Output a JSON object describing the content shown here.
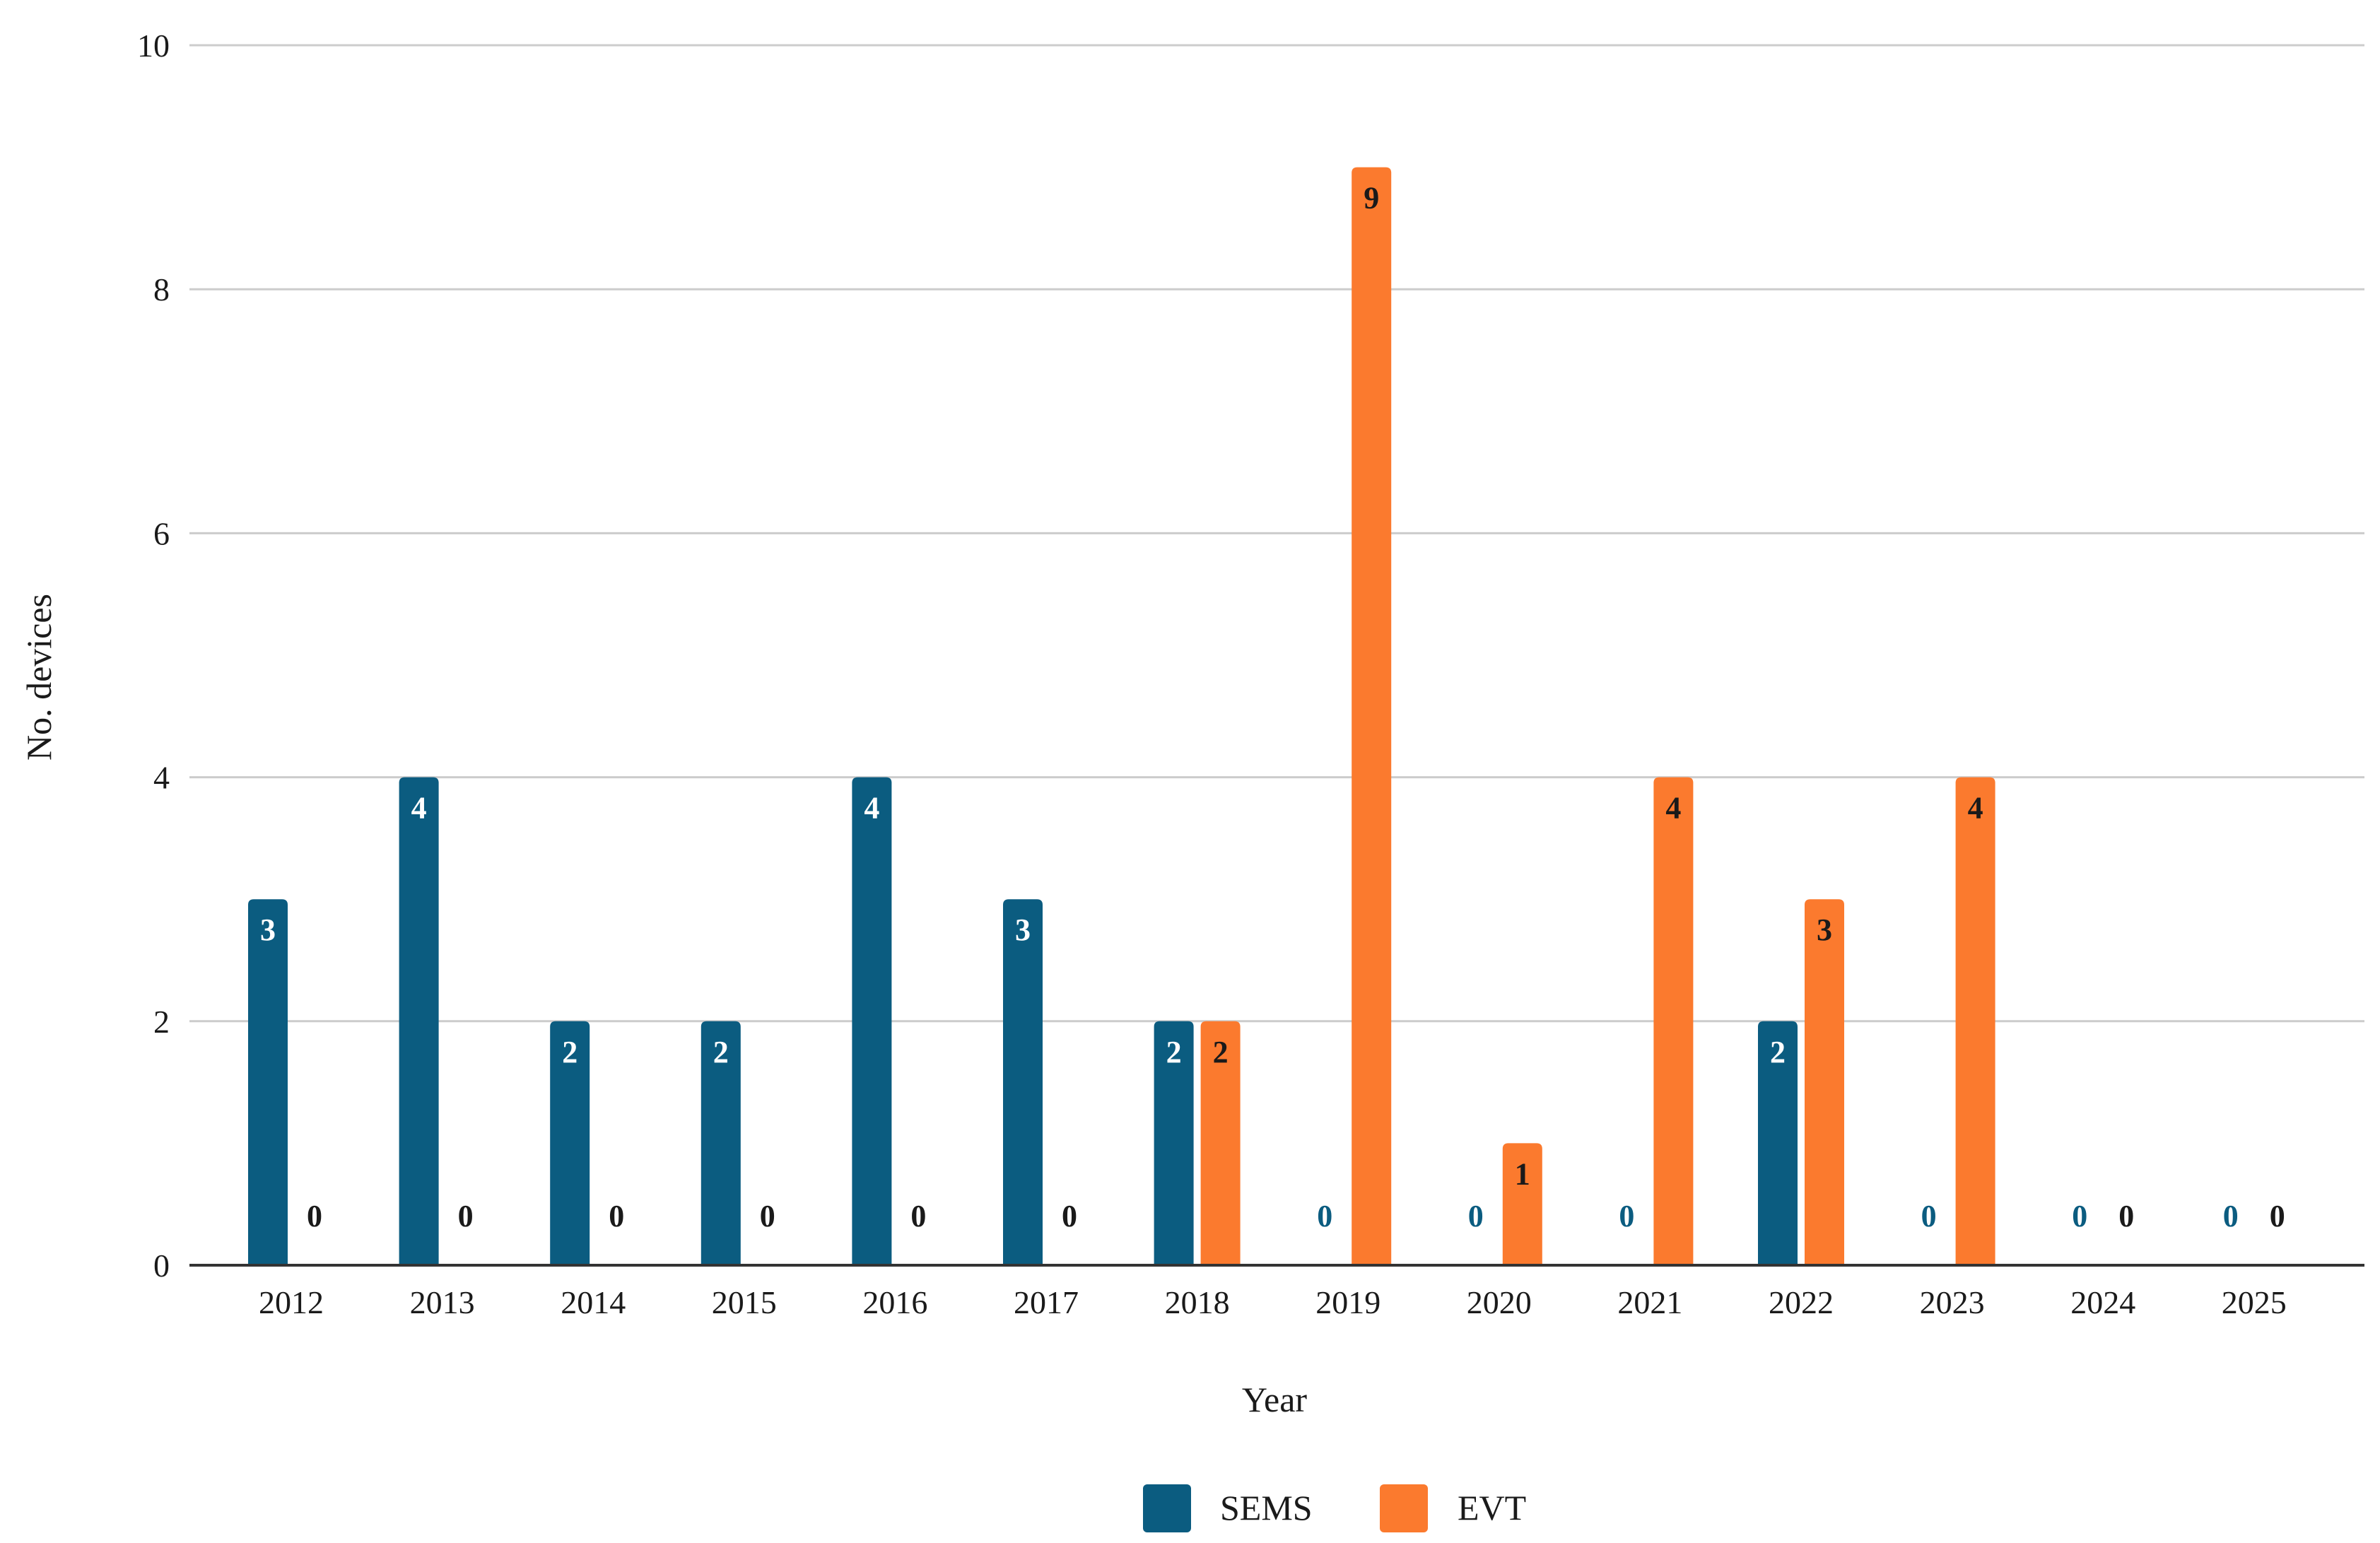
{
  "chart_data": {
    "type": "bar",
    "title": "",
    "xlabel": "Year",
    "ylabel": "No. devices",
    "ylim": [
      0,
      10
    ],
    "yticks": [
      0,
      2,
      4,
      6,
      8,
      10
    ],
    "grid": true,
    "legend_position": "bottom",
    "categories": [
      "2012",
      "2013",
      "2014",
      "2015",
      "2016",
      "2017",
      "2018",
      "2019",
      "2020",
      "2021",
      "2022",
      "2023",
      "2024",
      "2025"
    ],
    "series": [
      {
        "name": "SEMS",
        "color": "#0b5c80",
        "values": [
          3,
          4,
          2,
          2,
          4,
          3,
          2,
          0,
          0,
          0,
          2,
          0,
          0,
          0
        ]
      },
      {
        "name": "EVT",
        "color": "#fb7a2e",
        "values": [
          0,
          0,
          0,
          0,
          0,
          0,
          2,
          9,
          1,
          4,
          3,
          4,
          0,
          0
        ]
      }
    ],
    "label_colors": {
      "inside_SEMS": "#ffffff",
      "inside_EVT": "#1a1a1a",
      "zero_SEMS": "#0b5c80",
      "zero_EVT": "#1a1a1a"
    }
  }
}
